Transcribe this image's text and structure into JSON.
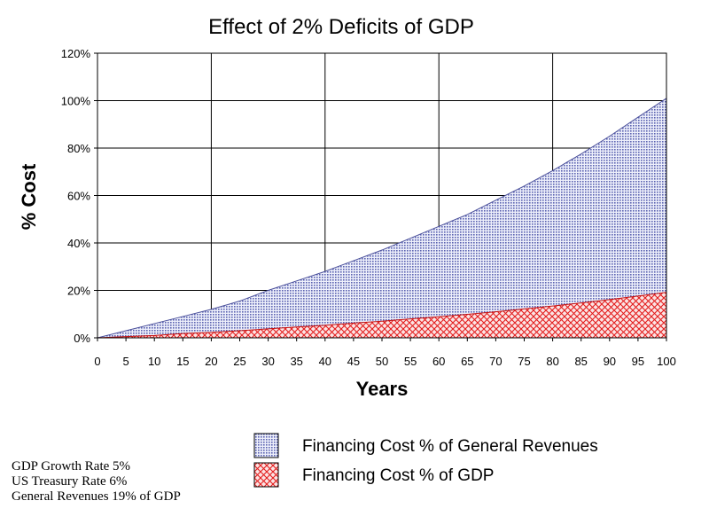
{
  "chart_data": {
    "type": "area",
    "title": "Effect of 2% Deficits of GDP",
    "xlabel": "Years",
    "ylabel": "% Cost",
    "xlim": [
      0,
      100
    ],
    "ylim": [
      0,
      120
    ],
    "x_ticks": [
      0,
      5,
      10,
      15,
      20,
      25,
      30,
      35,
      40,
      45,
      50,
      55,
      60,
      65,
      70,
      75,
      80,
      85,
      90,
      95,
      100
    ],
    "y_ticks": [
      0,
      20,
      40,
      60,
      80,
      100,
      120
    ],
    "y_tick_suffix": "%",
    "grid": "major, every 20 years and 20%",
    "legend_position": "bottom-center",
    "x": [
      0,
      5,
      10,
      15,
      20,
      25,
      30,
      35,
      40,
      45,
      50,
      55,
      60,
      65,
      70,
      75,
      80,
      85,
      90,
      95,
      100
    ],
    "series": [
      {
        "name": "Financing Cost % of General Revenues",
        "color": "#9aa0cf",
        "pattern": "dots",
        "values": [
          0,
          3,
          6,
          9,
          12,
          15.5,
          20,
          24,
          28,
          32.5,
          37,
          42,
          47,
          52,
          58,
          64,
          70.5,
          77.5,
          85,
          93,
          101
        ]
      },
      {
        "name": "Financing Cost % of GDP",
        "color": "#e31c1c",
        "pattern": "crosshatch",
        "values": [
          0,
          0.5,
          1,
          1.8,
          2.3,
          3,
          3.8,
          4.6,
          5.3,
          6.2,
          7,
          8,
          8.9,
          9.9,
          11,
          12.2,
          13.4,
          14.7,
          16.1,
          17.6,
          19.2
        ]
      }
    ]
  },
  "notes": [
    "GDP Growth Rate 5%",
    "US Treasury Rate 6%",
    "General Revenues 19% of GDP"
  ]
}
